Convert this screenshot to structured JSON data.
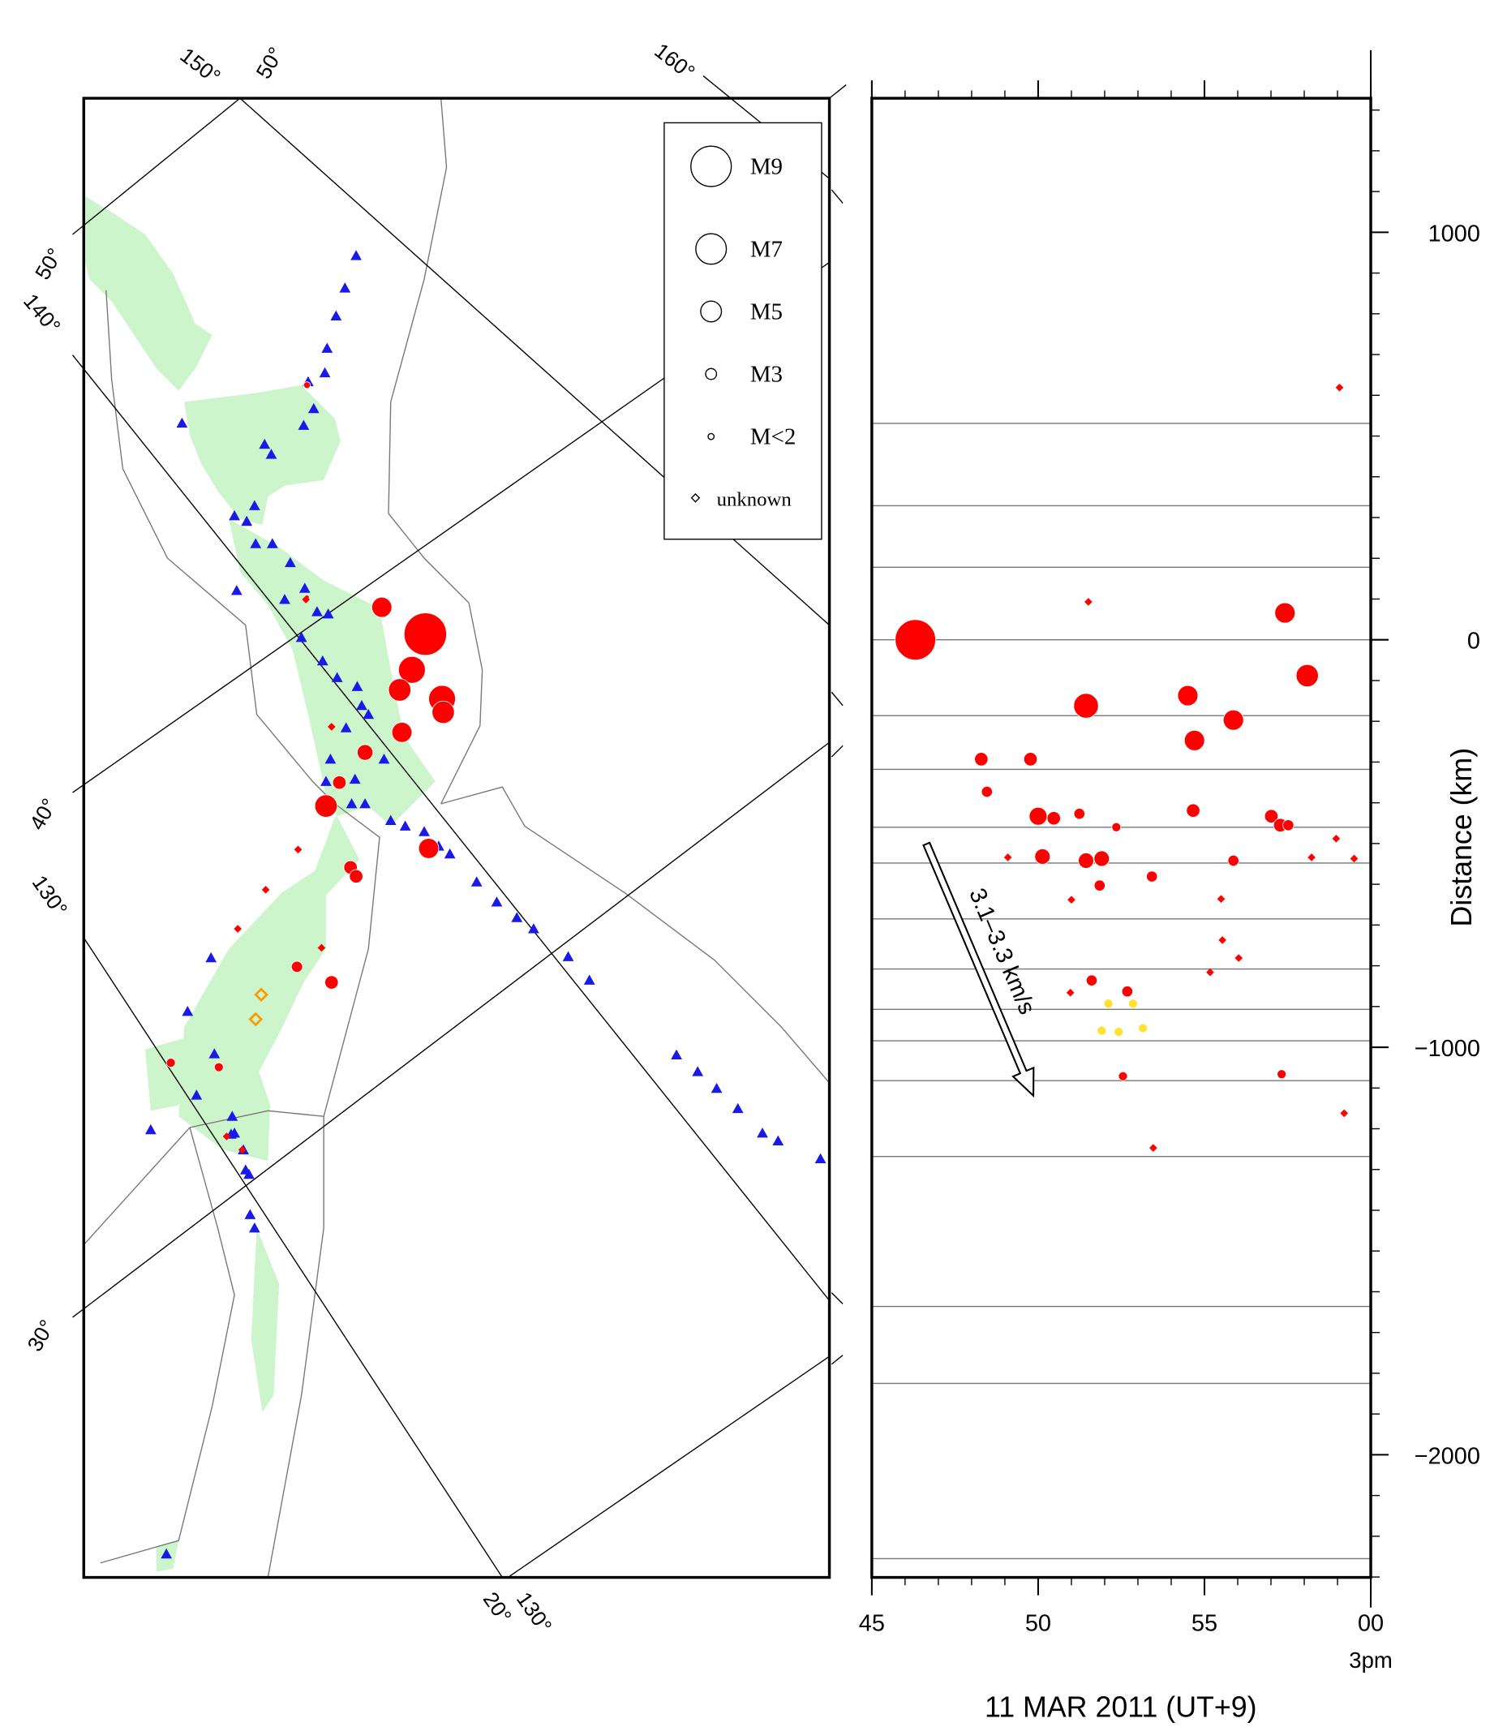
{
  "map": {
    "labels": [
      "150°",
      "50°",
      "160°",
      "50°",
      "140°",
      "40°",
      "130°",
      "30°",
      "20°",
      "130°"
    ]
  },
  "legend": {
    "entries": [
      {
        "label": "M9",
        "value": 9
      },
      {
        "label": "M7",
        "value": 7
      },
      {
        "label": "M5",
        "value": 5
      },
      {
        "label": "M3",
        "value": 3
      },
      {
        "label": "M<2",
        "value": 2
      },
      {
        "label": "unknown"
      }
    ]
  },
  "chart_data": {
    "type": "scatter",
    "xlabel": "11 MAR 2011 (UT+9)",
    "ylabel": "Distance (km)",
    "annotation": "3.1–3.3 km/s",
    "xlim": [
      45,
      60
    ],
    "ylim": [
      -2301,
      1329
    ],
    "xticks": [
      45,
      50,
      55,
      {
        "value": 60,
        "label": "00"
      }
    ],
    "xtick_note": "3pm",
    "yticks": [
      1000,
      0,
      {
        "value": -1000,
        "label": "−1000"
      },
      {
        "value": -2000,
        "label": "−2000"
      }
    ],
    "x_minor_step": 1,
    "y_minor_step": 100,
    "traces": [
      531,
      329,
      178,
      0,
      -186,
      -318,
      -460,
      -548,
      -685,
      -808,
      -907,
      -984,
      -1082,
      -1268,
      -1636,
      -1825,
      -2255
    ],
    "series": [
      {
        "color": "#ff0000",
        "marker": "circle",
        "x": [
          46.31,
          57.42,
          58.09,
          51.44,
          54.5,
          55.87,
          54.7,
          48.29,
          49.77,
          48.46,
          50.0,
          50.47,
          51.24,
          54.66,
          57.01,
          57.28,
          57.52,
          50.13,
          51.44,
          51.91,
          55.87,
          51.85,
          53.42,
          51.61,
          52.68,
          57.32,
          52.55,
          52.35
        ],
        "values": [
          0,
          66,
          -88,
          -162,
          -137,
          -197,
          -247,
          -293,
          -293,
          -373,
          -433,
          -438,
          -427,
          -419,
          -433,
          -455,
          -455,
          -532,
          -542,
          -537,
          -542,
          -603,
          -581,
          -836,
          -863,
          -1066,
          -1071,
          -460
        ],
        "magnitudes": [
          9,
          4.9,
          5.3,
          5.8,
          4.9,
          4.9,
          4.9,
          3.5,
          3.5,
          3,
          4.4,
          3.5,
          3,
          3.5,
          3.5,
          3.5,
          3,
          3.9,
          3.9,
          3.9,
          3,
          3,
          3,
          3,
          3,
          2.6,
          2.6,
          2.6
        ]
      },
      {
        "color": "#ffe033",
        "marker": "circle",
        "x": [
          52.11,
          52.85,
          51.91,
          52.42,
          53.15
        ],
        "values": [
          -893,
          -893,
          -959,
          -962,
          -953
        ],
        "magnitudes": [
          2.6,
          2.6,
          2.6,
          2.6,
          2.6
        ]
      },
      {
        "color": "#ff0000",
        "marker": "diamond",
        "x": [
          51.51,
          59.06,
          49.09,
          55.17,
          58.96,
          58.22,
          59.5,
          51.0,
          53.46,
          55.54,
          59.2,
          50.97,
          55.5,
          56.03
        ],
        "values": [
          93,
          619,
          -534,
          -816,
          -488,
          -534,
          -537,
          -638,
          -1247,
          -737,
          -1162,
          -866,
          -636,
          -781
        ]
      }
    ]
  }
}
